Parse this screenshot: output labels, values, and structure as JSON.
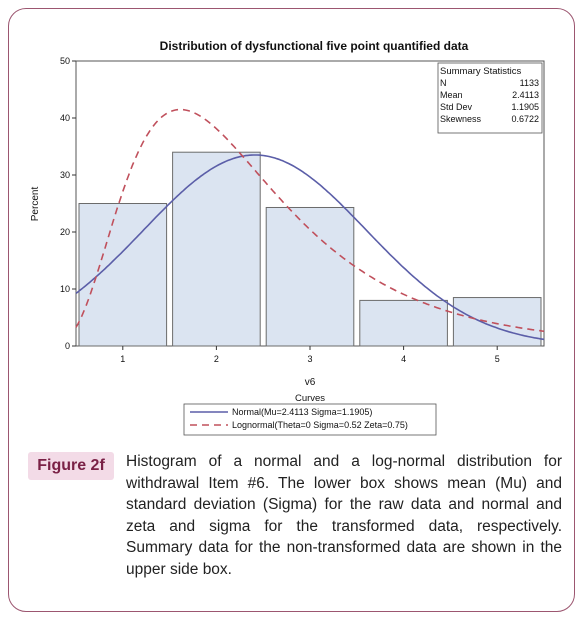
{
  "chart_data": {
    "type": "bar",
    "title": "Distribution of dysfunctional five point quantified data",
    "xlabel": "v6",
    "ylabel": "Percent",
    "xlim": [
      0.5,
      5.5
    ],
    "ylim": [
      0,
      50
    ],
    "xticks": [
      1,
      2,
      3,
      4,
      5
    ],
    "yticks": [
      0,
      10,
      20,
      30,
      40,
      50
    ],
    "bins": [
      {
        "x0": 0.5,
        "x1": 1.5,
        "value": 25.0
      },
      {
        "x0": 1.5,
        "x1": 2.5,
        "value": 34.0
      },
      {
        "x0": 2.5,
        "x1": 3.5,
        "value": 24.3
      },
      {
        "x0": 3.5,
        "x1": 4.5,
        "value": 8.0
      },
      {
        "x0": 4.5,
        "x1": 5.5,
        "value": 8.5
      }
    ],
    "curves": [
      {
        "label": "Normal(Mu=2.4113 Sigma=1.1905)",
        "kind": "normal",
        "mu": 2.4113,
        "sigma": 1.1905,
        "scale": 100,
        "color": "#5b5ea8",
        "dash": "solid"
      },
      {
        "label": "Lognormal(Theta=0 Sigma=0.52 Zeta=0.75)",
        "kind": "lognormal",
        "theta": 0,
        "sigma": 0.52,
        "zeta": 0.75,
        "scale": 100,
        "color": "#c0505c",
        "dash": "dashed"
      }
    ],
    "legend_title": "Curves",
    "legend_position": "bottom",
    "stats_box": {
      "title": "Summary Statistics",
      "rows": [
        {
          "label": "N",
          "value": "1133"
        },
        {
          "label": "Mean",
          "value": "2.4113"
        },
        {
          "label": "Std Dev",
          "value": "1.1905"
        },
        {
          "label": "Skewness",
          "value": "0.6722"
        }
      ],
      "position": "top-right"
    },
    "colors": {
      "bar_fill": "#dbe4f1",
      "bar_stroke": "#6b6b6b",
      "frame_border": "#9c5670"
    }
  },
  "figure_label": "Figure 2f",
  "caption": "Histogram of a normal and a log-normal distribution for withdrawal Item #6. The lower box shows mean (Mu) and standard deviation (Sigma) for the raw data and normal and zeta and sigma for the transformed data, respectively. Summary data for the non-transformed data are shown in the upper side box."
}
